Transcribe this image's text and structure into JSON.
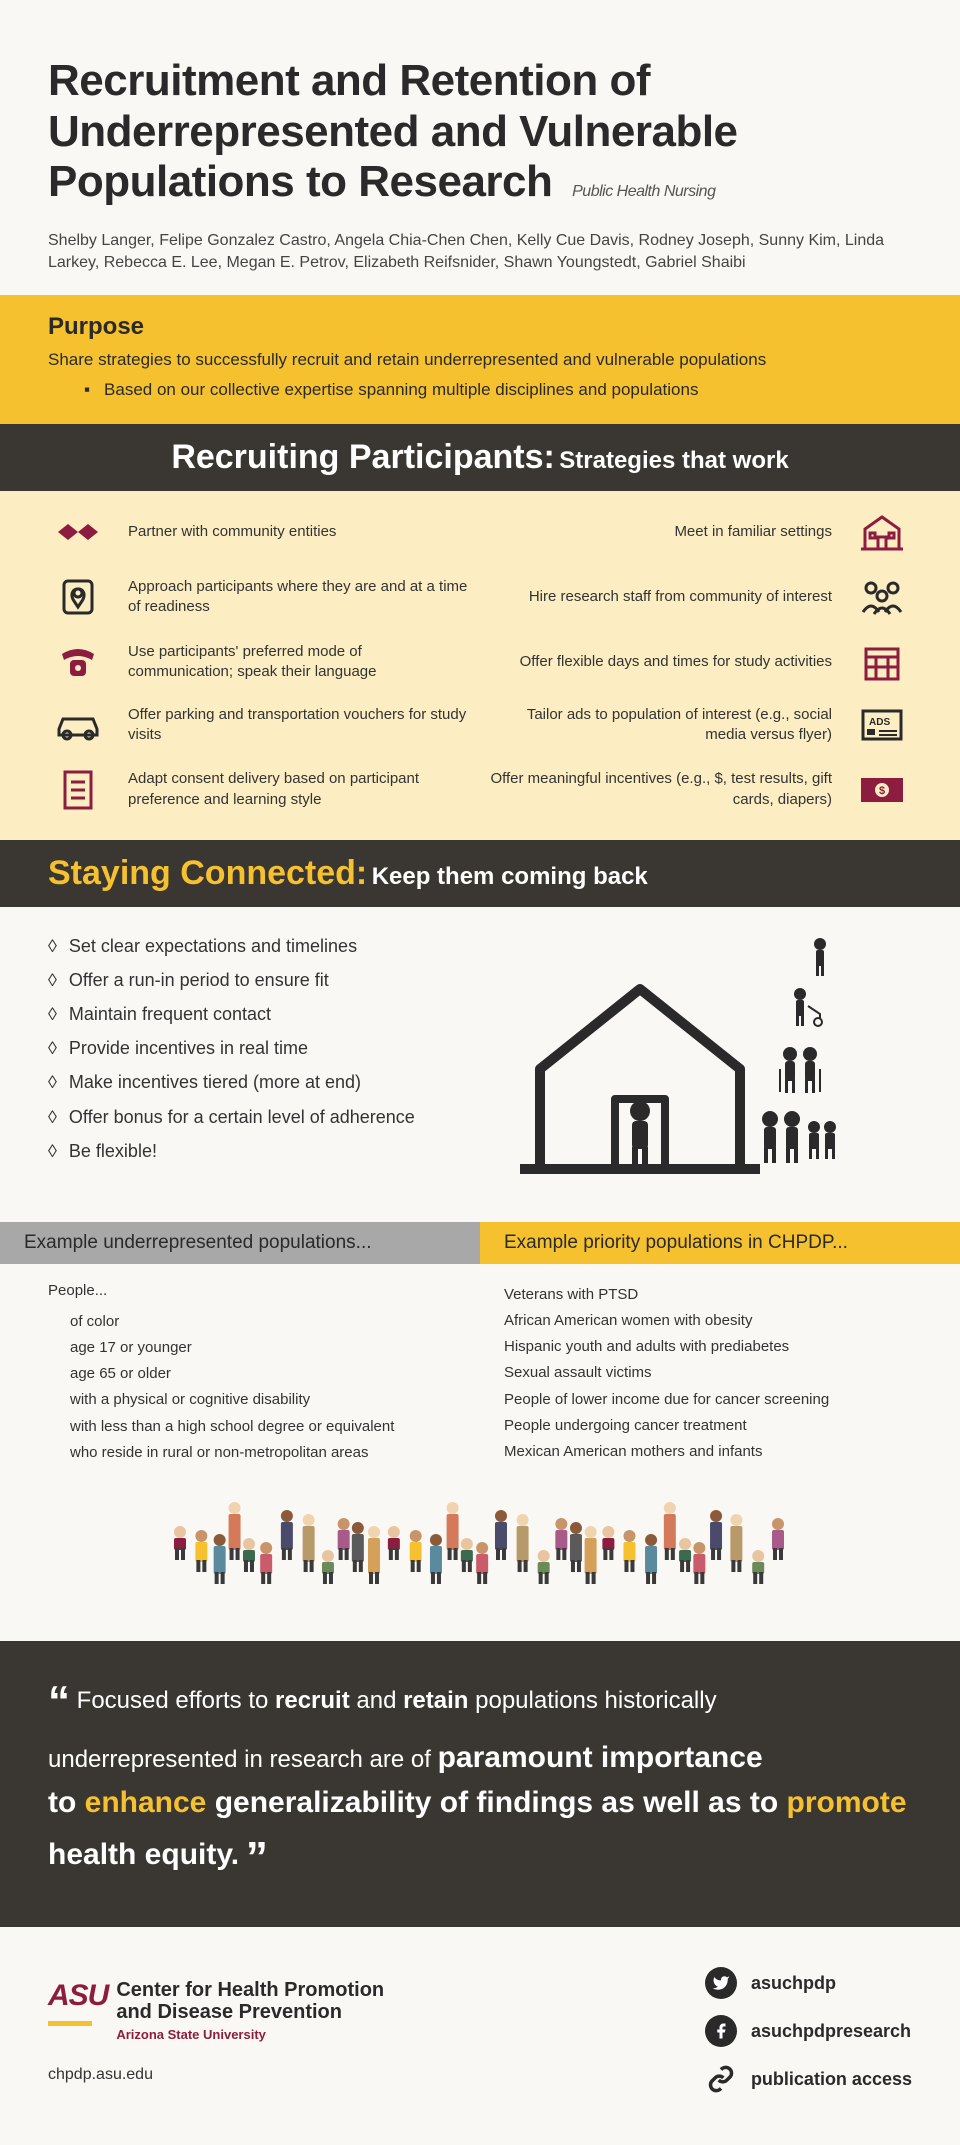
{
  "header": {
    "title": "Recruitment and Retention of Underrepresented and Vulnerable Populations to Research",
    "subtitle": "Public Health Nursing",
    "authors": "Shelby Langer, Felipe Gonzalez Castro, Angela Chia-Chen Chen, Kelly Cue Davis, Rodney Joseph, Sunny Kim, Linda Larkey, Rebecca E. Lee, Megan E. Petrov, Elizabeth Reifsnider, Shawn Youngstedt, Gabriel Shaibi"
  },
  "purpose": {
    "heading": "Purpose",
    "text": "Share strategies to successfully recruit and retain underrepresented and vulnerable populations",
    "bullet": "Based on our collective expertise spanning multiple disciplines and populations"
  },
  "recruiting": {
    "heading": "Recruiting Participants:",
    "sub": "Strategies that work",
    "rows": [
      {
        "left": "Partner with community entities",
        "right": "Meet in familiar settings",
        "iconL": "handshake",
        "iconR": "building"
      },
      {
        "left": "Approach participants where they are and at a time of readiness",
        "right": "Hire research staff from community of interest",
        "iconL": "location",
        "iconR": "people"
      },
      {
        "left": "Use participants' preferred mode of communication; speak their language",
        "right": "Offer flexible days and times for study activities",
        "iconL": "phone",
        "iconR": "calendar"
      },
      {
        "left": "Offer parking and transportation vouchers for study visits",
        "right": "Tailor ads to population of interest (e.g., social media versus flyer)",
        "iconL": "car",
        "iconR": "ads"
      },
      {
        "left": "Adapt consent delivery based on participant preference and learning style",
        "right": "Offer meaningful incentives (e.g., $, test results, gift cards, diapers)",
        "iconL": "document",
        "iconR": "money"
      }
    ]
  },
  "connected": {
    "heading": "Staying Connected:",
    "sub": "Keep them coming back",
    "items": [
      "Set clear expectations and timelines",
      "Offer a run-in period to ensure fit",
      "Maintain frequent contact",
      "Provide incentives in real time",
      "Make incentives tiered (more at end)",
      "Offer bonus for a certain level of adherence",
      "Be flexible!"
    ]
  },
  "examples": {
    "left_heading": "Example underrepresented populations...",
    "right_heading": "Example priority populations in CHPDP...",
    "left_lead": "People...",
    "left_items": [
      "of color",
      "age 17 or younger",
      "age 65 or older",
      "with a physical or cognitive disability",
      "with less than a high school degree or equivalent",
      "who reside in rural or non-metropolitan areas"
    ],
    "right_items": [
      "Veterans with PTSD",
      "African American women with obesity",
      "Hispanic youth and adults with prediabetes",
      "Sexual assault victims",
      "People of lower income due for cancer screening",
      "People undergoing cancer treatment",
      "Mexican American mothers and infants"
    ]
  },
  "quote": {
    "p1a": "Focused efforts to ",
    "p1b": "recruit",
    "p1c": " and ",
    "p1d": "retain",
    "p1e": " populations historically underrepresented in research are of ",
    "p2": "paramount importance",
    "p3a": "to ",
    "p3b": "enhance",
    "p3c": " generalizability of findings as well as to ",
    "p3d": "promote",
    "p3e": " health equity."
  },
  "footer": {
    "asu": "ASU",
    "org1": "Center for Health Promotion",
    "org2": "and Disease Prevention",
    "univ": "Arizona State University",
    "url": "chpdp.asu.edu",
    "social": [
      {
        "label": "asuchpdp",
        "icon": "twitter"
      },
      {
        "label": "asuchpdpresearch",
        "icon": "facebook"
      },
      {
        "label": "publication access",
        "icon": "link"
      }
    ]
  },
  "colors": {
    "gold": "#f6c12e",
    "maroon": "#8c1d40",
    "dark": "#3a3632",
    "cream": "#fcedc2",
    "bg": "#faf8f4",
    "gray": "#a8a8a8"
  }
}
